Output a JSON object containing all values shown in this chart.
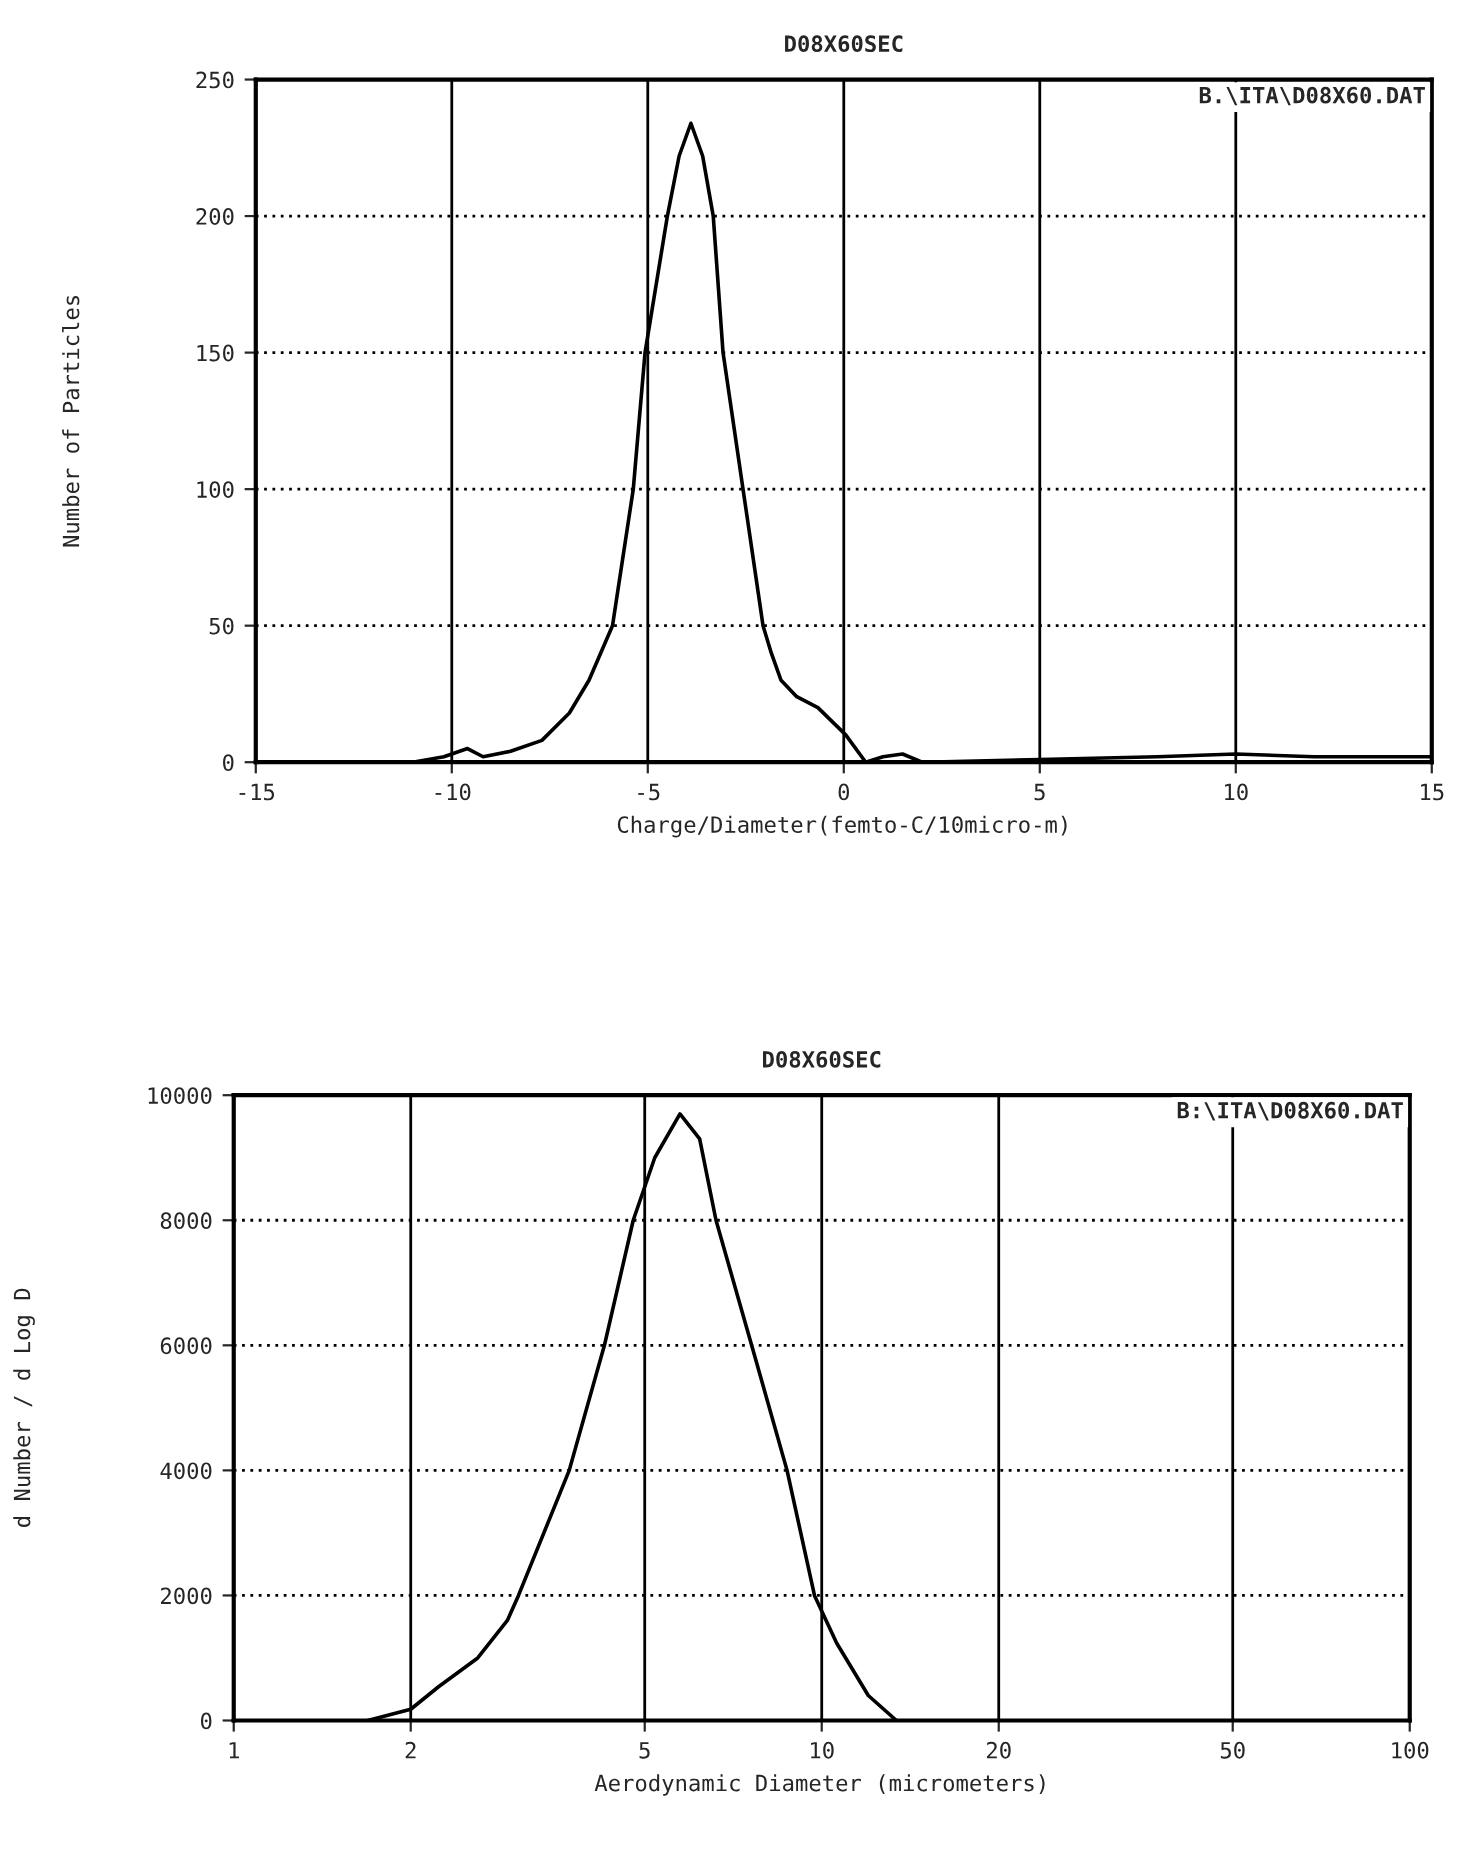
{
  "chart_data": [
    {
      "type": "line",
      "title": "D08X60SEC",
      "xlabel": "Charge/Diameter(femto-C/10micro-m)",
      "ylabel": "Number of Particles",
      "annotations": [
        "B.\\ITA\\D08X60.DAT"
      ],
      "xlim": [
        -15,
        15
      ],
      "xticks": [
        -15,
        -10,
        -5,
        0,
        5,
        10,
        15
      ],
      "ylim": [
        0,
        250
      ],
      "yticks": [
        0,
        50,
        100,
        150,
        200,
        250
      ],
      "grid": true,
      "series": [
        {
          "color": "#000000",
          "x": [
            -15,
            -11,
            -10.2,
            -9.6,
            -9.2,
            -8.5,
            -7.7,
            -7,
            -6.5,
            -5.9,
            -5.37,
            -5.07,
            -4.5,
            -4.2,
            -3.9,
            -3.6,
            -3.33,
            -3.08,
            -2.57,
            -2.06,
            -1.85,
            -1.6,
            -1.2,
            -0.66,
            0.05,
            0.56,
            1,
            1.5,
            2,
            5,
            8,
            10,
            12,
            15
          ],
          "values": [
            0,
            0,
            2,
            5,
            2,
            4,
            8,
            18,
            30,
            50,
            100,
            150,
            200,
            222,
            234,
            222,
            200,
            150,
            100,
            50,
            40,
            30,
            24,
            20,
            10,
            0,
            2,
            3,
            0,
            1,
            2,
            3,
            2,
            2
          ]
        }
      ]
    },
    {
      "type": "line",
      "title": "D08X60SEC",
      "xlabel": "Aerodynamic Diameter (micrometers)",
      "ylabel": "d Number / d Log D",
      "annotations": [
        "B:\\ITA\\D08X60.DAT"
      ],
      "log": "x",
      "xlim": [
        1,
        100
      ],
      "xticks": [
        1,
        2,
        5,
        10,
        20,
        50,
        100
      ],
      "ylim": [
        0,
        10000
      ],
      "yticks": [
        0,
        2000,
        4000,
        6000,
        8000,
        10000
      ],
      "grid": true,
      "series": [
        {
          "color": "#000000",
          "x": [
            1.69,
            2,
            2.23,
            2.6,
            2.92,
            3.05,
            3.72,
            4.27,
            4.78,
            5.2,
            5.74,
            6.2,
            6.61,
            7.6,
            8.73,
            9.72,
            10.6,
            12,
            13.4
          ],
          "values": [
            0,
            180,
            540,
            1000,
            1600,
            2000,
            4000,
            6000,
            8000,
            9000,
            9700,
            9300,
            8000,
            6000,
            4000,
            2000,
            1240,
            400,
            0
          ]
        }
      ]
    }
  ]
}
